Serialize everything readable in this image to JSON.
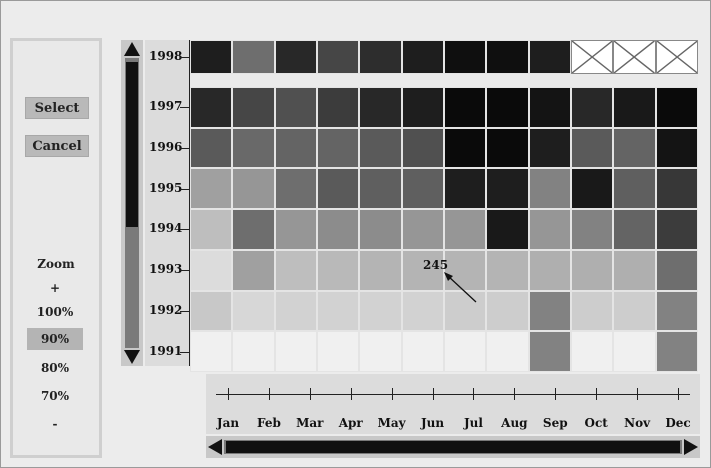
{
  "controls": {
    "select_label": "Select",
    "cancel_label": "Cancel"
  },
  "zoom": {
    "title": "Zoom",
    "plus": "+",
    "options": [
      "100%",
      "90%",
      "80%",
      "70%"
    ],
    "minus": "-",
    "selected": "90%"
  },
  "callout": {
    "value": "245"
  },
  "chart_data": {
    "type": "heatmap",
    "rows": [
      "1998",
      "1997",
      "1996",
      "1995",
      "1994",
      "1993",
      "1992",
      "1991"
    ],
    "columns": [
      "Jan",
      "Feb",
      "Mar",
      "Apr",
      "May",
      "Jun",
      "Jul",
      "Aug",
      "Sep",
      "Oct",
      "Nov",
      "Dec"
    ],
    "values_gray_level": [
      [
        30,
        110,
        40,
        70,
        45,
        30,
        15,
        15,
        30,
        null,
        null,
        null
      ],
      [
        40,
        70,
        80,
        60,
        40,
        30,
        10,
        10,
        20,
        40,
        25,
        10
      ],
      [
        90,
        105,
        100,
        100,
        90,
        80,
        10,
        10,
        30,
        90,
        100,
        20
      ],
      [
        160,
        150,
        110,
        90,
        95,
        95,
        30,
        30,
        130,
        25,
        95,
        55
      ],
      [
        190,
        110,
        150,
        140,
        140,
        150,
        150,
        25,
        150,
        130,
        100,
        60
      ],
      [
        220,
        160,
        190,
        185,
        180,
        180,
        180,
        180,
        175,
        175,
        175,
        110
      ],
      [
        200,
        215,
        210,
        210,
        210,
        210,
        205,
        205,
        130,
        205,
        205,
        130
      ],
      [
        240,
        240,
        240,
        240,
        240,
        240,
        240,
        240,
        130,
        240,
        240,
        130
      ]
    ],
    "missing_mark": "x"
  }
}
